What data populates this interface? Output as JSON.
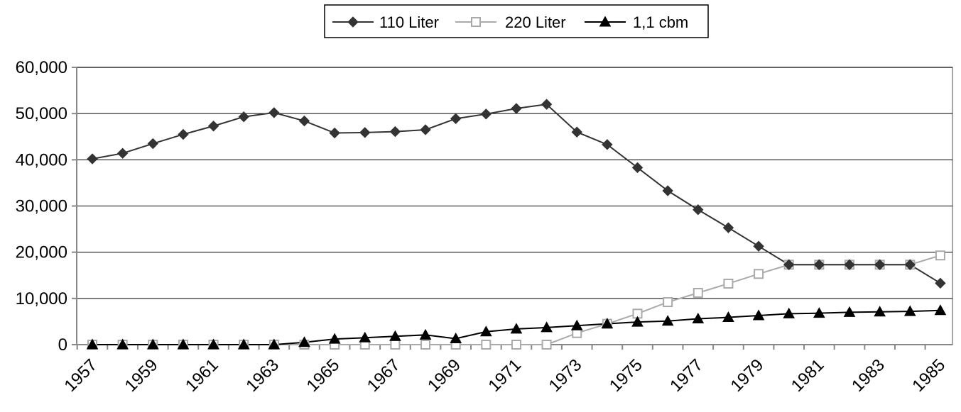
{
  "chart_data": {
    "type": "line",
    "x": [
      1957,
      1958,
      1959,
      1960,
      1961,
      1962,
      1963,
      1964,
      1965,
      1966,
      1967,
      1968,
      1969,
      1970,
      1971,
      1972,
      1973,
      1974,
      1975,
      1976,
      1977,
      1978,
      1979,
      1980,
      1981,
      1982,
      1983,
      1984,
      1985
    ],
    "x_tick_labels": [
      "1957",
      "1959",
      "1961",
      "1963",
      "1965",
      "1967",
      "1969",
      "1971",
      "1973",
      "1975",
      "1977",
      "1979",
      "1981",
      "1983",
      "1985"
    ],
    "y_tick_labels": [
      "0",
      "10,000",
      "20,000",
      "30,000",
      "40,000",
      "50,000",
      "60,000"
    ],
    "ylim": [
      0,
      60000
    ],
    "grid": "horizontal",
    "legend_position": "top",
    "series": [
      {
        "name": "110 Liter",
        "color": "#333333",
        "marker": "diamond",
        "values": [
          40200,
          41400,
          43500,
          45500,
          47300,
          49300,
          50200,
          48400,
          45800,
          45900,
          46100,
          46500,
          48900,
          49900,
          51100,
          52000,
          46000,
          43300,
          38300,
          33300,
          29200,
          25300,
          21300,
          17300,
          17300,
          17300,
          17300,
          17300,
          13300
        ]
      },
      {
        "name": "220 Liter",
        "color": "#aaaaaa",
        "marker": "square-open",
        "values": [
          0,
          0,
          0,
          0,
          0,
          0,
          0,
          0,
          0,
          0,
          0,
          0,
          0,
          0,
          0,
          0,
          2500,
          4500,
          6700,
          9200,
          11200,
          13200,
          15300,
          17300,
          17300,
          17300,
          17300,
          17300,
          19300
        ]
      },
      {
        "name": "1,1 cbm",
        "color": "#000000",
        "marker": "triangle",
        "values": [
          0,
          0,
          0,
          0,
          0,
          0,
          0,
          500,
          1200,
          1500,
          1800,
          2100,
          1300,
          2800,
          3400,
          3700,
          4100,
          4500,
          4900,
          5100,
          5600,
          5900,
          6300,
          6700,
          6800,
          7000,
          7100,
          7200,
          7400
        ]
      }
    ]
  }
}
